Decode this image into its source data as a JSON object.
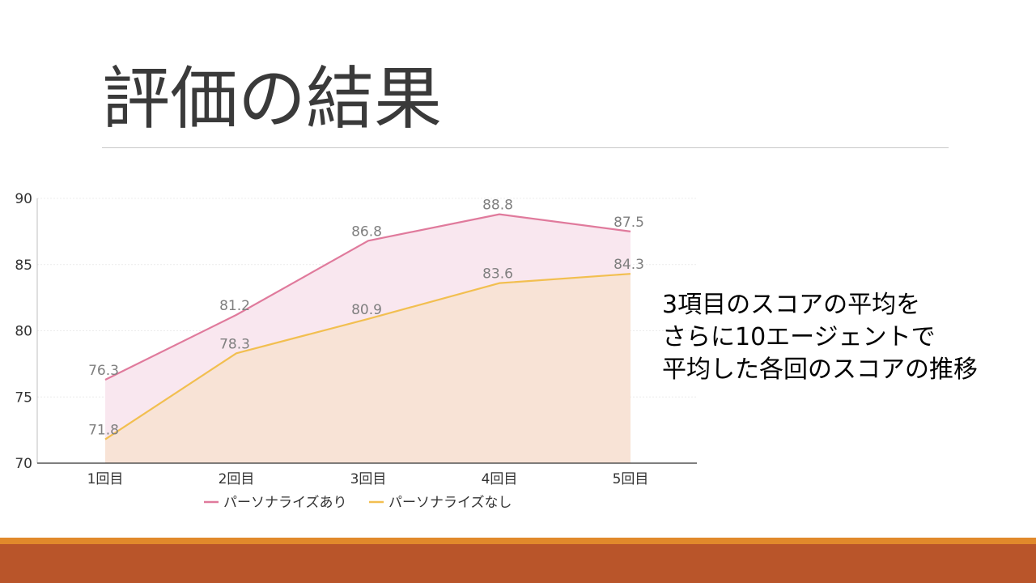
{
  "slide": {
    "title": "評価の結果",
    "note_lines": [
      "3項目のスコアの平均を",
      "さらに10エージェントで",
      "平均した各回のスコアの推移"
    ]
  },
  "chart_data": {
    "type": "area",
    "categories": [
      "1回目",
      "2回目",
      "3回目",
      "4回目",
      "5回目"
    ],
    "series": [
      {
        "name": "パーソナライズあり",
        "values": [
          76.3,
          81.2,
          86.8,
          88.8,
          87.5
        ],
        "color": "#e07a9c",
        "fill": "#f9e7ef"
      },
      {
        "name": "パーソナライズなし",
        "values": [
          71.8,
          78.3,
          80.9,
          83.6,
          84.3
        ],
        "color": "#f2bf50",
        "fill": "#f8e3d6"
      }
    ],
    "ylim": [
      70,
      90
    ],
    "yticks": [
      70,
      75,
      80,
      85,
      90
    ],
    "grid": true,
    "legend": "bottom",
    "title": "",
    "xlabel": "",
    "ylabel": ""
  },
  "colors": {
    "band_orange": "#e1892b",
    "band_rust": "#b9552a"
  }
}
